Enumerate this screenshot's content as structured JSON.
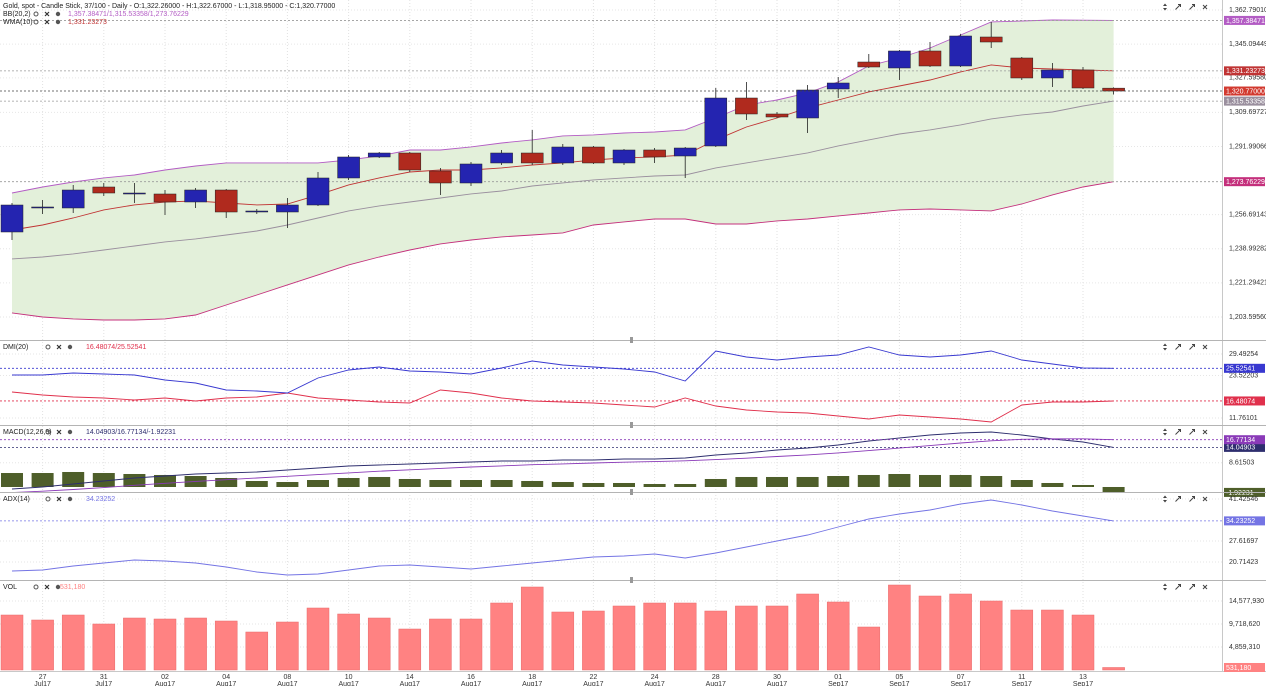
{
  "chart_data": [
    {
      "type": "candlestick",
      "title": "Gold, spot - Candle Stick, 37/100 - Daily - O:1,322.26000 - H:1,322.67000 - L:1,318.95000 - C:1,320.77000",
      "categories": [
        null,
        "27",
        null,
        "31",
        null,
        "02",
        null,
        "04",
        null,
        "08",
        null,
        "10",
        null,
        "14",
        null,
        "16",
        null,
        "18",
        null,
        "22",
        null,
        "24",
        null,
        "28",
        null,
        "30",
        null,
        "01",
        null,
        "05",
        null,
        "07",
        null,
        "11",
        null,
        "13",
        null
      ],
      "category_months": [
        null,
        "Jul17",
        null,
        "Jul17",
        null,
        "Aug17",
        null,
        "Aug17",
        null,
        "Aug17",
        null,
        "Aug17",
        null,
        "Aug17",
        null,
        "Aug17",
        null,
        "Aug17",
        null,
        "Aug17",
        null,
        "Aug17",
        null,
        "Aug17",
        null,
        "Aug17",
        null,
        "Sep17",
        null,
        "Sep17",
        null,
        "Sep17",
        null,
        "Sep17",
        null,
        "Sep17",
        null
      ],
      "open": [
        1247.66,
        1260.11,
        1260.11,
        1271.0,
        1267.37,
        1267.37,
        1263.22,
        1269.44,
        1258.03,
        1258.03,
        1261.66,
        1275.67,
        1286.56,
        1288.63,
        1279.3,
        1273.07,
        1283.45,
        1288.63,
        1283.45,
        1291.74,
        1283.45,
        1290.19,
        1287.07,
        1292.26,
        1317.15,
        1308.86,
        1306.78,
        1321.82,
        1335.82,
        1332.71,
        1341.53,
        1333.75,
        1348.79,
        1337.9,
        1327.53,
        1331.67,
        1322.26
      ],
      "high": [
        1262.7,
        1264.26,
        1272.03,
        1273.07,
        1273.07,
        1269.44,
        1270.48,
        1269.96,
        1259.59,
        1265.29,
        1278.78,
        1287.59,
        1289.15,
        1289.15,
        1280.85,
        1283.96,
        1290.19,
        1300.56,
        1293.3,
        1292.26,
        1290.71,
        1291.22,
        1291.74,
        1322.34,
        1325.45,
        1309.89,
        1323.9,
        1328.04,
        1339.97,
        1342.05,
        1346.19,
        1350.34,
        1356.57,
        1338.42,
        1335.3,
        1333.23,
        1322.67
      ],
      "low": [
        1243.51,
        1257.0,
        1257.52,
        1266.33,
        1262.7,
        1256.48,
        1260.11,
        1254.92,
        1257.0,
        1249.74,
        1261.15,
        1274.63,
        1286.04,
        1278.78,
        1266.85,
        1271.51,
        1282.41,
        1282.41,
        1282.41,
        1282.93,
        1282.41,
        1283.45,
        1275.67,
        1291.74,
        1305.75,
        1306.78,
        1299.0,
        1317.15,
        1332.71,
        1326.49,
        1333.23,
        1333.23,
        1343.08,
        1326.49,
        1322.86,
        1321.82,
        1318.95
      ],
      "close": [
        1261.66,
        1260.63,
        1269.44,
        1267.88,
        1267.88,
        1263.22,
        1269.44,
        1258.03,
        1258.55,
        1261.66,
        1275.67,
        1286.56,
        1288.63,
        1279.81,
        1273.07,
        1282.93,
        1288.63,
        1283.45,
        1291.74,
        1283.45,
        1290.19,
        1286.56,
        1291.22,
        1317.15,
        1308.86,
        1307.3,
        1321.3,
        1324.93,
        1333.23,
        1341.53,
        1333.75,
        1349.31,
        1346.19,
        1327.53,
        1331.67,
        1322.34,
        1320.77
      ],
      "up_color": "#2424b0",
      "down_color": "#b02a1e",
      "close_label": "1,320.77000",
      "bands": {
        "name": "BB(20,2)",
        "legend_text": "1,357.38471/1,315.53358/1,273.76229",
        "fill": "#e3f0da",
        "lines": [
          {
            "color": "#b35cc4",
            "last_label": "1,357.38471",
            "values": [
              1267.9,
              1271.0,
              1273.6,
              1275.7,
              1277.2,
              1279.8,
              1281.9,
              1283.5,
              1283.5,
              1283.5,
              1283.5,
              1285.0,
              1287.1,
              1290.2,
              1290.2,
              1291.8,
              1293.8,
              1295.4,
              1297.5,
              1298.0,
              1299.0,
              1299.5,
              1300.6,
              1306.8,
              1313.5,
              1316.1,
              1319.8,
              1325.5,
              1333.8,
              1337.9,
              1343.1,
              1349.8,
              1356.6,
              1357.1,
              1357.6,
              1357.5,
              1357.38471
            ]
          },
          {
            "color": "#9a8f9e",
            "last_label": "1,315.53358",
            "values": [
              1233.7,
              1234.7,
              1236.3,
              1238.3,
              1240.4,
              1242.5,
              1244.1,
              1246.1,
              1248.2,
              1251.3,
              1254.9,
              1258.6,
              1261.2,
              1263.2,
              1265.3,
              1267.4,
              1268.9,
              1271.5,
              1273.1,
              1274.7,
              1275.7,
              1276.7,
              1277.2,
              1280.9,
              1283.5,
              1286.1,
              1288.7,
              1292.3,
              1295.4,
              1298.5,
              1300.6,
              1303.2,
              1306.3,
              1308.4,
              1309.9,
              1313.0,
              1315.53358
            ]
          },
          {
            "color": "#c4307c",
            "last_label": "1,273.76229",
            "values": [
              1205.7,
              1203.6,
              1202.6,
              1202.0,
              1202.0,
              1202.6,
              1204.6,
              1209.8,
              1215.0,
              1220.2,
              1225.4,
              1230.6,
              1234.7,
              1238.3,
              1241.5,
              1243.5,
              1245.1,
              1246.1,
              1247.2,
              1251.3,
              1252.9,
              1254.4,
              1254.4,
              1251.8,
              1251.8,
              1253.4,
              1254.4,
              1256.0,
              1257.5,
              1259.1,
              1259.6,
              1259.1,
              1258.6,
              1262.2,
              1266.9,
              1271.0,
              1273.76229
            ]
          }
        ]
      },
      "series": [
        {
          "name": "WMA(10)",
          "legend_text": "1,331.23273",
          "color": "#c03434",
          "last_label": "1,331.23273",
          "values": [
            1248.7,
            1251.3,
            1254.9,
            1259.1,
            1261.7,
            1263.2,
            1263.8,
            1262.7,
            1261.7,
            1262.2,
            1266.9,
            1272.1,
            1275.7,
            1278.8,
            1279.8,
            1279.8,
            1280.9,
            1282.4,
            1283.5,
            1285.0,
            1286.1,
            1286.6,
            1287.6,
            1295.4,
            1302.1,
            1306.8,
            1312.0,
            1316.1,
            1320.3,
            1323.4,
            1326.5,
            1330.7,
            1334.3,
            1332.7,
            1332.2,
            1331.7,
            1331.23273
          ]
        }
      ],
      "ylim": [
        1191.65,
        1366.42
      ],
      "yticks": [
        {
          "value": 1362.7901,
          "label": "1,362.79010"
        },
        {
          "value": 1345.09449,
          "label": "1,345.09449"
        },
        {
          "value": 1327.5958,
          "label": "1,327.59580"
        },
        {
          "value": 1309.69727,
          "label": "1,309.69727"
        },
        {
          "value": 1291.99066,
          "label": "1,291.99066"
        },
        {
          "value": 1256.69143,
          "label": "1,256.69143"
        },
        {
          "value": 1238.99282,
          "label": "1,238.99282"
        },
        {
          "value": 1221.29421,
          "label": "1,221.29421"
        },
        {
          "value": 1203.5956,
          "label": "1,203.59560"
        }
      ]
    },
    {
      "type": "line",
      "title": "DMI(20)",
      "legend_text": "16.48074/25.52541",
      "series": [
        {
          "color": "#e0304c",
          "last_label": "16.48074",
          "values": [
            18.96,
            18.13,
            17.58,
            17.3,
            16.75,
            17.3,
            16.47,
            17.3,
            17.58,
            18.69,
            17.3,
            16.75,
            16.19,
            15.92,
            19.52,
            18.69,
            17.3,
            16.47,
            16.19,
            15.92,
            15.36,
            14.81,
            17.3,
            15.08,
            13.98,
            13.42,
            13.15,
            12.31,
            11.48,
            12.59,
            12.04,
            11.48,
            10.65,
            15.36,
            16.19,
            16.19,
            16.48074
          ]
        },
        {
          "color": "#3838d0",
          "last_label": "25.52541",
          "values": [
            23.67,
            23.67,
            24.23,
            23.95,
            23.67,
            22.29,
            21.46,
            19.52,
            19.24,
            18.69,
            22.84,
            25.06,
            25.89,
            24.78,
            24.5,
            23.95,
            25.61,
            27.55,
            26.44,
            25.89,
            25.33,
            24.5,
            22.01,
            30.32,
            28.66,
            27.83,
            28.66,
            29.21,
            31.43,
            29.21,
            28.66,
            29.21,
            30.32,
            27.83,
            26.72,
            25.61,
            25.52541
          ]
        }
      ],
      "ylim": [
        9.82,
        32.54
      ],
      "yticks": [
        29.49254,
        23.52203,
        11.76101
      ]
    },
    {
      "type": "combo",
      "title": "MACD(12,26,9)",
      "legend_text": "14.04903/16.77134/-1.92231",
      "bars": {
        "color": "#4e5e2a",
        "last_label": "-1.92231",
        "values": [
          4.96,
          4.96,
          5.32,
          4.96,
          4.61,
          4.26,
          3.9,
          3.19,
          2.13,
          1.77,
          2.48,
          3.19,
          3.55,
          2.84,
          2.48,
          2.48,
          2.48,
          2.13,
          1.77,
          1.42,
          1.42,
          1.06,
          1.06,
          2.84,
          3.55,
          3.55,
          3.55,
          3.9,
          4.26,
          4.61,
          4.26,
          4.26,
          3.9,
          2.48,
          1.42,
          0.71,
          -1.92231
        ]
      },
      "series": [
        {
          "color": "#2e2e6e",
          "last_label": "14.04903",
          "values": [
            -0.71,
            0,
            1.06,
            2.13,
            3.19,
            3.9,
            4.61,
            4.96,
            5.32,
            6.03,
            6.74,
            7.45,
            7.8,
            8.16,
            8.51,
            8.87,
            9.22,
            9.22,
            9.57,
            9.57,
            9.93,
            9.93,
            10.28,
            11.35,
            12.06,
            13.12,
            13.83,
            14.89,
            16.31,
            17.38,
            18.44,
            19.15,
            19.5,
            18.44,
            17.02,
            15.96,
            14.04903
          ]
        },
        {
          "color": "#8a3ab8",
          "last_label": "16.77134",
          "values": [
            -2.0,
            -1.5,
            -0.9,
            -0.2,
            0.6,
            1.3,
            2.0,
            2.6,
            3.2,
            3.8,
            4.4,
            5.0,
            5.6,
            6.1,
            6.6,
            7.1,
            7.5,
            7.9,
            8.2,
            8.5,
            8.8,
            9.0,
            9.3,
            9.7,
            10.2,
            10.8,
            11.4,
            12.1,
            12.9,
            13.8,
            14.7,
            15.6,
            16.4,
            16.9,
            17.1,
            17.1,
            16.77134
          ]
        }
      ],
      "ylim": [
        -2.13,
        21.28
      ],
      "yticks": [
        8.61503
      ]
    },
    {
      "type": "line",
      "title": "ADX(14)",
      "legend_text": "34.23252",
      "series": [
        {
          "color": "#7474e4",
          "last_label": "34.23252",
          "values": [
            17.75,
            18.08,
            19.4,
            20.39,
            21.37,
            21.04,
            20.39,
            19.07,
            17.43,
            16.44,
            16.77,
            18.08,
            19.4,
            19.73,
            19.07,
            18.41,
            19.4,
            20.39,
            21.37,
            22.36,
            22.69,
            23.34,
            22.03,
            23.67,
            25.64,
            27.62,
            29.59,
            32.22,
            34.85,
            36.49,
            37.81,
            39.78,
            41.09,
            39.45,
            37.48,
            35.83,
            34.23252
          ]
        }
      ],
      "ylim": [
        15.45,
        42.74
      ],
      "yticks": [
        41.42546,
        27.61697,
        20.71423
      ]
    },
    {
      "type": "bar",
      "title": "VOL",
      "legend_text": "531,180",
      "color": "#ff8282",
      "last_label": "531,180",
      "values": [
        11620000,
        10564000,
        11620000,
        9719000,
        10986000,
        10775000,
        10986000,
        10352000,
        8028000,
        10141000,
        13099000,
        11831000,
        10986000,
        8662000,
        10775000,
        10775000,
        14155000,
        17536000,
        12254000,
        12465000,
        13522000,
        14155000,
        14155000,
        12465000,
        13522000,
        13522000,
        16057000,
        14367000,
        9085000,
        17958000,
        15634000,
        16057000,
        14578000,
        12676000,
        12676000,
        11620000,
        531180
      ],
      "ylim": [
        0,
        18592000
      ],
      "yticks": [
        {
          "value": 14577930,
          "label": "14,577,930"
        },
        {
          "value": 9718620,
          "label": "9,718,620"
        },
        {
          "value": 4859310,
          "label": "4,859,310"
        }
      ]
    }
  ]
}
